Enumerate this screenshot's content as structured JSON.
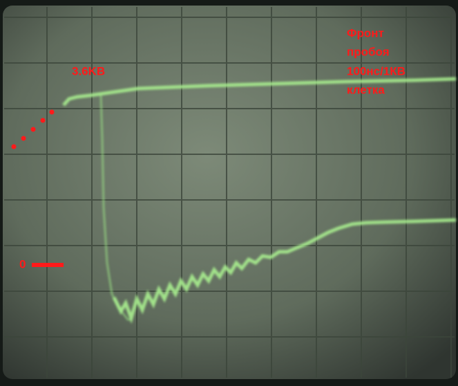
{
  "annotations": {
    "level": "3.6KB",
    "note": [
      "Фронт",
      "пробоя",
      "100нс/1КВ",
      "клетка"
    ],
    "zero": "0"
  }
}
